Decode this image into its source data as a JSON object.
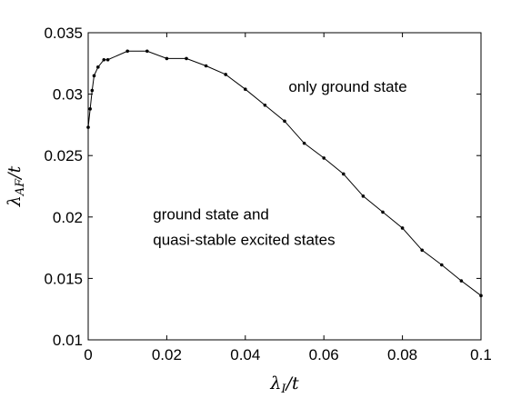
{
  "chart_data": {
    "type": "line",
    "xlabel": "λ_I/t",
    "ylabel": "λ_AF/t",
    "xlim": [
      0,
      0.1
    ],
    "ylim": [
      0.01,
      0.035
    ],
    "grid": false,
    "x_ticks": [
      "0",
      "0.02",
      "0.04",
      "0.06",
      "0.08",
      "0.1"
    ],
    "y_ticks": [
      "0.01",
      "0.015",
      "0.02",
      "0.025",
      "0.03",
      "0.035"
    ],
    "series": [
      {
        "color": "#000000",
        "marker": "dot",
        "x": [
          0,
          0.0005,
          0.001,
          0.0015,
          0.0025,
          0.004,
          0.005,
          0.01,
          0.015,
          0.02,
          0.025,
          0.03,
          0.035,
          0.04,
          0.045,
          0.05,
          0.055,
          0.06,
          0.065,
          0.07,
          0.075,
          0.08,
          0.085,
          0.09,
          0.095,
          0.1
        ],
        "y": [
          0.0273,
          0.0288,
          0.0303,
          0.0315,
          0.0322,
          0.0328,
          0.0328,
          0.0335,
          0.0335,
          0.0329,
          0.0329,
          0.0323,
          0.0316,
          0.0304,
          0.0291,
          0.0278,
          0.026,
          0.0248,
          0.0235,
          0.0217,
          0.0204,
          0.0191,
          0.0173,
          0.0161,
          0.0148,
          0.0136
        ]
      }
    ],
    "annotations": [
      {
        "lines": [
          "only ground state"
        ],
        "x": 0.051,
        "y": 0.0302
      },
      {
        "lines": [
          "ground state and",
          "quasi-stable excited states"
        ],
        "x": 0.0165,
        "y": 0.0198
      }
    ]
  }
}
